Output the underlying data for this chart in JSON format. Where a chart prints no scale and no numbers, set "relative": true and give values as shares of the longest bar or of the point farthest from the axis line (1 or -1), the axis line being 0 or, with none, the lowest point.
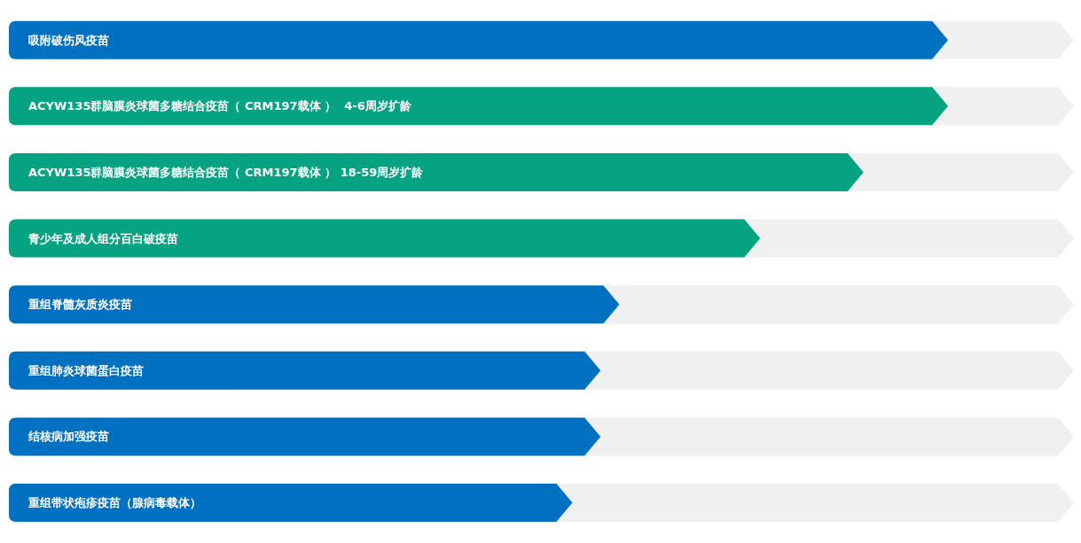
{
  "chart_data": {
    "type": "bar",
    "orientation": "horizontal",
    "relative": true,
    "data_labels": false,
    "categories": [
      "吸附破伤风疫苗",
      "ACYW135群脑膜炎球菌多糖结合疫苗（ CRM197载体 ）  4-6周岁扩龄",
      "ACYW135群脑膜炎球菌多糖结合疫苗（ CRM197载体 ） 18-59周岁扩龄",
      "青少年及成人组分百白破疫苗",
      "重组脊髓灰质炎疫苗",
      "重组肺炎球菌蛋白疫苗",
      "结核病加强疫苗",
      "重组带状疱疹疫苗（腺病毒载体）"
    ],
    "values": [
      1,
      1,
      0.91,
      0.8,
      0.65,
      0.63,
      0.63,
      0.6
    ],
    "colors": [
      "#0070c0",
      "#06a383",
      "#06a383",
      "#06a383",
      "#0070c0",
      "#0070c0",
      "#0070c0",
      "#0070c0"
    ]
  }
}
